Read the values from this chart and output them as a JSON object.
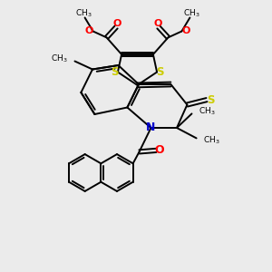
{
  "bg_color": "#ebebeb",
  "bond_color": "#000000",
  "bond_width": 1.4,
  "S_color": "#cccc00",
  "N_color": "#0000cc",
  "O_color": "#ff0000",
  "figsize": [
    3.0,
    3.0
  ],
  "dpi": 100,
  "xlim": [
    0,
    10
  ],
  "ylim": [
    0,
    10
  ]
}
